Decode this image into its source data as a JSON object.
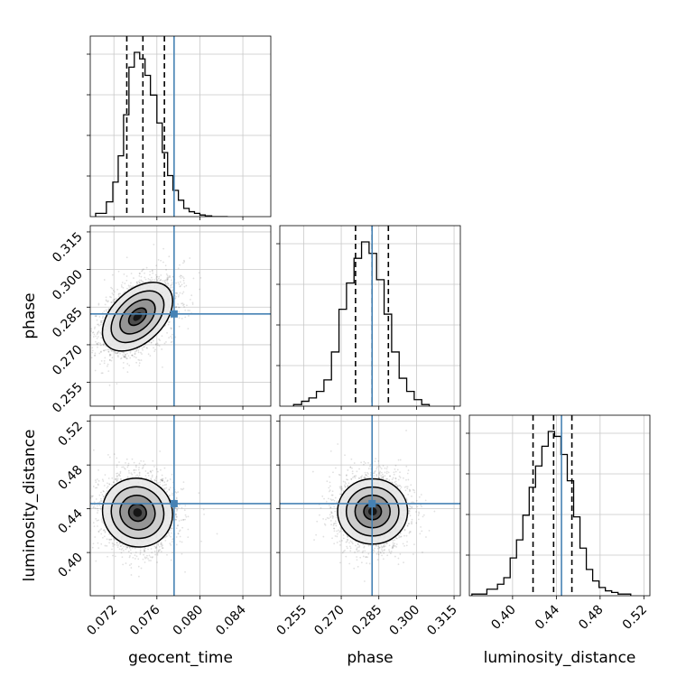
{
  "chart_data": {
    "type": "corner",
    "parameters": [
      {
        "name": "geocent_time",
        "label": "geocent_time",
        "range": [
          0.0698,
          0.0866
        ],
        "ticks": [
          0.072,
          0.076,
          0.08,
          0.084
        ],
        "tick_labels": [
          "0.072",
          "0.076",
          "0.080",
          "0.084"
        ],
        "truth": 0.0776,
        "quantiles": [
          0.0732,
          0.0747,
          0.0767
        ]
      },
      {
        "name": "phase",
        "label": "phase",
        "range": [
          0.2455,
          0.3175
        ],
        "ticks": [
          0.255,
          0.27,
          0.285,
          0.3,
          0.315
        ],
        "tick_labels": [
          "0.255",
          "0.270",
          "0.285",
          "0.300",
          "0.315"
        ],
        "truth": 0.2823,
        "quantiles": [
          0.2757,
          0.2823,
          0.2888
        ]
      },
      {
        "name": "luminosity_distance",
        "label": "luminosity_distance",
        "range": [
          0.3605,
          0.5255
        ],
        "ticks": [
          0.4,
          0.44,
          0.48,
          0.52
        ],
        "tick_labels": [
          "0.40",
          "0.44",
          "0.48",
          "0.52"
        ],
        "truth": 0.4447,
        "quantiles": [
          0.4187,
          0.4375,
          0.4542
        ]
      }
    ],
    "histograms": {
      "geocent_time": {
        "bin_edges": [
          0.0703,
          0.0713,
          0.0719,
          0.0724,
          0.0729,
          0.0734,
          0.0739,
          0.0744,
          0.0749,
          0.0754,
          0.076,
          0.0765,
          0.077,
          0.0775,
          0.078,
          0.0785,
          0.079,
          0.0795,
          0.08,
          0.0805,
          0.0811,
          0.0826
        ],
        "counts": [
          0.02,
          0.09,
          0.21,
          0.37,
          0.62,
          0.91,
          1.0,
          0.96,
          0.86,
          0.74,
          0.57,
          0.39,
          0.25,
          0.16,
          0.1,
          0.05,
          0.03,
          0.02,
          0.01,
          0.005,
          0.0
        ]
      },
      "phase": {
        "bin_edges": [
          0.251,
          0.2542,
          0.2571,
          0.2601,
          0.2631,
          0.2661,
          0.2691,
          0.2721,
          0.2751,
          0.2781,
          0.2811,
          0.2841,
          0.2871,
          0.2901,
          0.2931,
          0.2961,
          0.2991,
          0.3021,
          0.3051
        ],
        "counts": [
          0.01,
          0.03,
          0.05,
          0.09,
          0.16,
          0.33,
          0.59,
          0.75,
          0.9,
          1.0,
          0.93,
          0.77,
          0.56,
          0.33,
          0.17,
          0.09,
          0.04,
          0.01
        ]
      },
      "luminosity_distance": {
        "bin_edges": [
          0.3628,
          0.3765,
          0.3862,
          0.392,
          0.3978,
          0.4036,
          0.4094,
          0.4152,
          0.421,
          0.4268,
          0.4326,
          0.4384,
          0.4442,
          0.45,
          0.4558,
          0.4616,
          0.4674,
          0.4732,
          0.479,
          0.4848,
          0.4906,
          0.4964,
          0.508
        ],
        "counts": [
          0.01,
          0.04,
          0.07,
          0.11,
          0.23,
          0.34,
          0.49,
          0.66,
          0.79,
          0.91,
          1.0,
          0.97,
          0.86,
          0.7,
          0.48,
          0.29,
          0.16,
          0.09,
          0.05,
          0.03,
          0.02,
          0.01
        ]
      }
    },
    "density_2d": [
      {
        "x": "geocent_time",
        "y": "phase",
        "peak": [
          0.0742,
          0.2812
        ],
        "sigma": [
          0.0016,
          0.007
        ],
        "rho": 0.45
      },
      {
        "x": "geocent_time",
        "y": "luminosity_distance",
        "peak": [
          0.0742,
          0.4365
        ],
        "sigma": [
          0.0016,
          0.016
        ],
        "rho": -0.05
      },
      {
        "x": "phase",
        "y": "luminosity_distance",
        "peak": [
          0.2825,
          0.4375
        ],
        "sigma": [
          0.0065,
          0.016
        ],
        "rho": 0.0
      }
    ],
    "truth_color": "#4682b4",
    "quantile_style": "dashed",
    "grid": true
  }
}
